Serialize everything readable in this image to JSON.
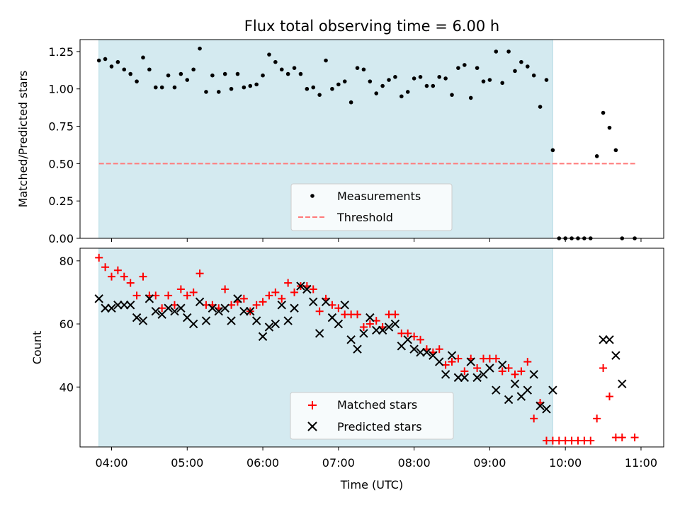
{
  "title": "Flux total observing time = 6.00 h",
  "colors": {
    "shade": "#d4eaf0",
    "measurement": "#000000",
    "threshold": "#ff7a7a",
    "matched": "#ff0000",
    "predicted": "#000000"
  },
  "chart_data": [
    {
      "type": "scatter",
      "panel": "top",
      "ylabel": "Matched/Predicted stars",
      "ylim": [
        0,
        1.33
      ],
      "yticks": [
        {
          "v": 0,
          "label": "0.00"
        },
        {
          "v": 0.25,
          "label": "0.25"
        },
        {
          "v": 0.5,
          "label": "0.50"
        },
        {
          "v": 0.75,
          "label": "0.75"
        },
        {
          "v": 1.0,
          "label": "1.00"
        },
        {
          "v": 1.25,
          "label": "1.25"
        }
      ],
      "shaded_region": [
        "03:50",
        "09:50"
      ],
      "threshold": 0.5,
      "threshold_range": [
        "03:50",
        "10:57"
      ],
      "legend": {
        "placement": "lower-center",
        "entries": [
          "Measurements",
          "Threshold"
        ]
      },
      "series": [
        {
          "name": "Measurements",
          "x": [
            "03:50",
            "03:55",
            "04:00",
            "04:05",
            "04:10",
            "04:15",
            "04:20",
            "04:25",
            "04:30",
            "04:35",
            "04:40",
            "04:45",
            "04:50",
            "04:55",
            "05:00",
            "05:05",
            "05:10",
            "05:15",
            "05:20",
            "05:25",
            "05:30",
            "05:35",
            "05:40",
            "05:45",
            "05:50",
            "05:55",
            "06:00",
            "06:05",
            "06:10",
            "06:15",
            "06:20",
            "06:25",
            "06:30",
            "06:35",
            "06:40",
            "06:45",
            "06:50",
            "06:55",
            "07:00",
            "07:05",
            "07:10",
            "07:15",
            "07:20",
            "07:25",
            "07:30",
            "07:35",
            "07:40",
            "07:45",
            "07:50",
            "07:55",
            "08:00",
            "08:05",
            "08:10",
            "08:15",
            "08:20",
            "08:25",
            "08:30",
            "08:35",
            "08:40",
            "08:45",
            "08:50",
            "08:55",
            "09:00",
            "09:05",
            "09:10",
            "09:15",
            "09:20",
            "09:25",
            "09:30",
            "09:35",
            "09:40",
            "09:45",
            "09:50",
            "09:55",
            "10:00",
            "10:05",
            "10:10",
            "10:15",
            "10:20",
            "10:25",
            "10:30",
            "10:35",
            "10:40",
            "10:45",
            "10:55"
          ],
          "y": [
            1.19,
            1.2,
            1.15,
            1.18,
            1.13,
            1.1,
            1.05,
            1.21,
            1.13,
            1.01,
            1.01,
            1.09,
            1.01,
            1.1,
            1.06,
            1.13,
            1.27,
            0.98,
            1.09,
            0.98,
            1.1,
            1.0,
            1.1,
            1.01,
            1.02,
            1.03,
            1.09,
            1.23,
            1.18,
            1.13,
            1.1,
            1.14,
            1.1,
            1.0,
            1.01,
            0.96,
            1.19,
            1.0,
            1.03,
            1.05,
            0.91,
            1.14,
            1.13,
            1.05,
            0.97,
            1.02,
            1.06,
            1.08,
            0.95,
            0.98,
            1.07,
            1.08,
            1.02,
            1.02,
            1.08,
            1.07,
            0.96,
            1.14,
            1.16,
            0.94,
            1.14,
            1.05,
            1.06,
            1.25,
            1.04,
            1.25,
            1.12,
            1.18,
            1.15,
            1.09,
            0.88,
            1.06,
            0.59,
            0.0,
            0.0,
            0.0,
            0.0,
            0.0,
            0.0,
            0.55,
            0.84,
            0.74,
            0.59,
            0.0,
            0.0
          ]
        }
      ]
    },
    {
      "type": "scatter",
      "panel": "bottom",
      "title": "",
      "xlabel": "Time (UTC)",
      "ylabel": "Count",
      "ylim": [
        21,
        84
      ],
      "yticks": [
        {
          "v": 40,
          "label": "40"
        },
        {
          "v": 60,
          "label": "60"
        },
        {
          "v": 80,
          "label": "80"
        }
      ],
      "xlim": [
        "03:35",
        "11:18"
      ],
      "xticks": [
        "04:00",
        "05:00",
        "06:00",
        "07:00",
        "08:00",
        "09:00",
        "10:00",
        "11:00"
      ],
      "shaded_region": [
        "03:50",
        "09:50"
      ],
      "legend": {
        "placement": "lower-center",
        "entries": [
          "Matched stars",
          "Predicted stars"
        ]
      },
      "series": [
        {
          "name": "Matched stars",
          "marker": "plus",
          "x": [
            "03:50",
            "03:55",
            "04:00",
            "04:05",
            "04:10",
            "04:15",
            "04:20",
            "04:25",
            "04:30",
            "04:35",
            "04:40",
            "04:45",
            "04:50",
            "04:55",
            "05:00",
            "05:05",
            "05:10",
            "05:15",
            "05:20",
            "05:25",
            "05:30",
            "05:35",
            "05:40",
            "05:45",
            "05:50",
            "05:55",
            "06:00",
            "06:05",
            "06:10",
            "06:15",
            "06:20",
            "06:25",
            "06:30",
            "06:35",
            "06:40",
            "06:45",
            "06:50",
            "06:55",
            "07:00",
            "07:05",
            "07:10",
            "07:15",
            "07:20",
            "07:25",
            "07:30",
            "07:35",
            "07:40",
            "07:45",
            "07:50",
            "07:55",
            "08:00",
            "08:05",
            "08:10",
            "08:15",
            "08:20",
            "08:25",
            "08:30",
            "08:35",
            "08:40",
            "08:45",
            "08:50",
            "08:55",
            "09:00",
            "09:05",
            "09:10",
            "09:15",
            "09:20",
            "09:25",
            "09:30",
            "09:35",
            "09:40",
            "09:45",
            "09:50",
            "09:55",
            "10:00",
            "10:05",
            "10:10",
            "10:15",
            "10:20",
            "10:25",
            "10:30",
            "10:35",
            "10:40",
            "10:45",
            "10:55"
          ],
          "y": [
            81,
            78,
            75,
            77,
            75,
            73,
            69,
            75,
            69,
            69,
            65,
            69,
            66,
            71,
            69,
            70,
            76,
            66,
            66,
            65,
            71,
            66,
            67,
            68,
            64,
            66,
            67,
            69,
            70,
            68,
            73,
            70,
            72,
            72,
            71,
            64,
            68,
            66,
            65,
            63,
            63,
            63,
            59,
            60,
            61,
            59,
            63,
            63,
            57,
            57,
            56,
            55,
            52,
            51,
            52,
            47,
            48,
            49,
            45,
            49,
            46,
            49,
            49,
            49,
            45,
            46,
            44,
            45,
            48,
            30,
            35,
            23,
            23,
            23,
            23,
            23,
            23,
            23,
            23,
            30,
            46,
            37,
            24,
            24,
            24
          ]
        },
        {
          "name": "Predicted stars",
          "marker": "x",
          "x": [
            "03:50",
            "03:55",
            "04:00",
            "04:05",
            "04:10",
            "04:15",
            "04:20",
            "04:25",
            "04:30",
            "04:35",
            "04:40",
            "04:45",
            "04:50",
            "04:55",
            "05:00",
            "05:05",
            "05:10",
            "05:15",
            "05:20",
            "05:25",
            "05:30",
            "05:35",
            "05:40",
            "05:45",
            "05:50",
            "05:55",
            "06:00",
            "06:05",
            "06:10",
            "06:15",
            "06:20",
            "06:25",
            "06:30",
            "06:35",
            "06:40",
            "06:45",
            "06:50",
            "06:55",
            "07:00",
            "07:05",
            "07:10",
            "07:15",
            "07:20",
            "07:25",
            "07:30",
            "07:35",
            "07:40",
            "07:45",
            "07:50",
            "07:55",
            "08:00",
            "08:05",
            "08:10",
            "08:15",
            "08:20",
            "08:25",
            "08:30",
            "08:35",
            "08:40",
            "08:45",
            "08:50",
            "08:55",
            "09:00",
            "09:05",
            "09:10",
            "09:15",
            "09:20",
            "09:25",
            "09:30",
            "09:35",
            "09:40",
            "09:45",
            "09:50",
            "10:30",
            "10:35",
            "10:40",
            "10:45"
          ],
          "y": [
            68,
            65,
            65,
            66,
            66,
            66,
            62,
            61,
            68,
            64,
            63,
            65,
            64,
            65,
            62,
            60,
            67,
            61,
            65,
            64,
            65,
            61,
            68,
            64,
            64,
            61,
            56,
            59,
            60,
            66,
            61,
            65,
            72,
            71,
            67,
            57,
            67,
            62,
            60,
            66,
            55,
            52,
            57,
            62,
            58,
            58,
            59,
            60,
            53,
            55,
            52,
            51,
            51,
            50,
            48,
            44,
            50,
            43,
            43,
            48,
            43,
            44,
            46,
            39,
            47,
            36,
            41,
            37,
            39,
            44,
            34,
            33,
            39,
            55,
            55,
            50,
            41
          ]
        }
      ]
    }
  ]
}
